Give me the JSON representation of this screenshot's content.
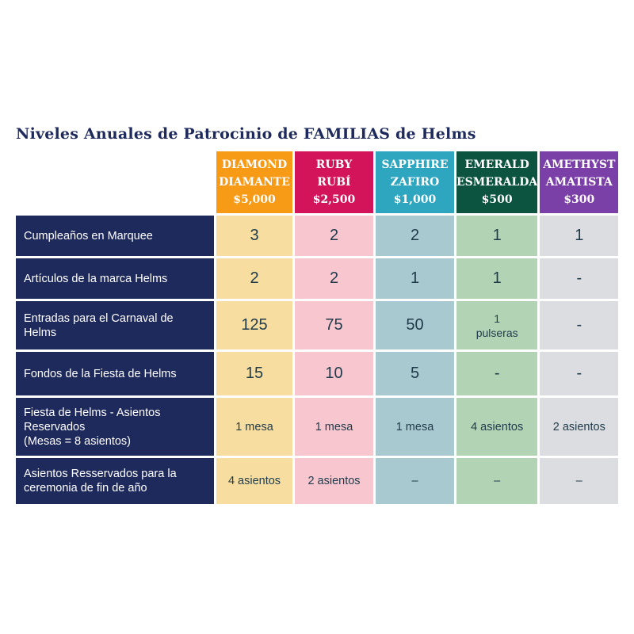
{
  "title": "Niveles Anuales de Patrocinio de FAMILIAS de Helms",
  "tiers": [
    {
      "name_en": "DIAMOND",
      "name_es": "DIAMANTE",
      "price": "$5,000",
      "color": "#f79a16"
    },
    {
      "name_en": "RUBY",
      "name_es": "RUBÍ",
      "price": "$2,500",
      "color": "#d4145a"
    },
    {
      "name_en": "SAPPHIRE",
      "name_es": "ZAFIRO",
      "price": "$1,000",
      "color": "#2fa6c0"
    },
    {
      "name_en": "EMERALD",
      "name_es": "ESMERALDA",
      "price": "$500",
      "color": "#0c5340"
    },
    {
      "name_en": "AMETHYST",
      "name_es": "AMATISTA",
      "price": "$300",
      "color": "#7b3fa8"
    }
  ],
  "rows": [
    {
      "label": "Cumpleaños en Marquee",
      "values": [
        "3",
        "2",
        "2",
        "1",
        "1"
      ]
    },
    {
      "label": "Artículos de la marca Helms",
      "values": [
        "2",
        "2",
        "1",
        "1",
        "-"
      ]
    },
    {
      "label": "Entradas para el Carnaval de Helms",
      "values": [
        "125",
        "75",
        "50",
        "1",
        "-"
      ],
      "emerald_note": "pulseras"
    },
    {
      "label": "Fondos de la Fiesta de Helms",
      "values": [
        "15",
        "10",
        "5",
        "-",
        "-"
      ]
    },
    {
      "label_lines": [
        "Fiesta de Helms - Asientos Reservados",
        "(Mesas = 8 asientos)"
      ],
      "values": [
        "1 mesa",
        "1 mesa",
        "1 mesa",
        "4 asientos",
        "2 asientos"
      ]
    },
    {
      "label": "Asientos Resservados para la ceremonia de fin de año",
      "values": [
        "4 asientos",
        "2 asientos",
        "–",
        "–",
        "–"
      ]
    }
  ]
}
